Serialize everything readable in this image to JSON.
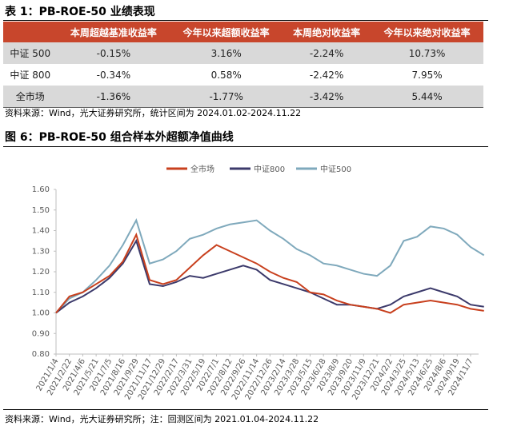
{
  "table_title": "表 1：PB-ROE-50 业绩表现",
  "table": {
    "header": [
      "",
      "本周超越基准收益率",
      "今年以来超额收益率",
      "本周绝对收益率",
      "今年以来绝对收益率"
    ],
    "rows": [
      [
        "中证 500",
        "-0.15%",
        "3.16%",
        "-2.24%",
        "10.73%"
      ],
      [
        "中证 800",
        "-0.34%",
        "0.58%",
        "-2.42%",
        "7.95%"
      ],
      [
        "全市场",
        "-1.36%",
        "-1.77%",
        "-3.42%",
        "5.44%"
      ]
    ]
  },
  "table_source": "资料来源：Wind，光大证券研究所，统计区间为 2024.01.02-2024.11.22",
  "figure_title": "图 6：PB-ROE-50 组合样本外超额净值曲线",
  "chart_data": {
    "type": "line",
    "categories": [
      "2021/1/4",
      "2021/2/22",
      "2021/4/6",
      "2021/5/21",
      "2021/7/5",
      "2021/8/16",
      "2021/9/29",
      "2021/11/17",
      "2021/12/29",
      "2022/2/17",
      "2022/3/31",
      "2022/5/19",
      "2022/7/1",
      "2022/8/12",
      "2022/9/26",
      "2022/11/14",
      "2022/12/26",
      "2023/2/14",
      "2023/3/28",
      "2023/5/15",
      "2023/6/28",
      "2023/8/9",
      "2023/9/20",
      "2023/11/9",
      "2023/12/21",
      "2024/2/2",
      "2024/3/25",
      "2024/5/13",
      "2024/6/25",
      "2024/8/6",
      "2024/9/19",
      "2024/11/7",
      null
    ],
    "series": [
      {
        "name": "全市场",
        "color": "#c8401e",
        "values": [
          1.0,
          1.08,
          1.1,
          1.14,
          1.18,
          1.25,
          1.38,
          1.16,
          1.14,
          1.16,
          1.22,
          1.28,
          1.33,
          1.3,
          1.27,
          1.24,
          1.2,
          1.17,
          1.15,
          1.1,
          1.09,
          1.06,
          1.04,
          1.03,
          1.02,
          1.0,
          1.04,
          1.05,
          1.06,
          1.05,
          1.04,
          1.02,
          1.01
        ]
      },
      {
        "name": "中证800",
        "color": "#3c3a6b",
        "values": [
          1.0,
          1.05,
          1.08,
          1.12,
          1.17,
          1.24,
          1.35,
          1.14,
          1.13,
          1.15,
          1.18,
          1.17,
          1.19,
          1.21,
          1.23,
          1.21,
          1.16,
          1.14,
          1.12,
          1.1,
          1.07,
          1.04,
          1.04,
          1.03,
          1.02,
          1.04,
          1.08,
          1.1,
          1.12,
          1.1,
          1.08,
          1.04,
          1.03
        ]
      },
      {
        "name": "中证500",
        "color": "#7fa9bc",
        "values": [
          1.0,
          1.07,
          1.1,
          1.16,
          1.23,
          1.33,
          1.45,
          1.24,
          1.26,
          1.3,
          1.36,
          1.38,
          1.41,
          1.43,
          1.44,
          1.45,
          1.4,
          1.36,
          1.31,
          1.28,
          1.24,
          1.23,
          1.21,
          1.19,
          1.18,
          1.23,
          1.35,
          1.37,
          1.42,
          1.41,
          1.38,
          1.32,
          1.28
        ]
      }
    ],
    "ylim": [
      0.8,
      1.6
    ],
    "yticks": [
      {
        "value": 0.8,
        "label": "0.80"
      },
      {
        "value": 0.9,
        "label": "0.90"
      },
      {
        "value": 1.0,
        "label": "1.00"
      },
      {
        "value": 1.1,
        "label": "1.10"
      },
      {
        "value": 1.2,
        "label": "1.20"
      },
      {
        "value": 1.3,
        "label": "1.30"
      },
      {
        "value": 1.4,
        "label": "1.40"
      },
      {
        "value": 1.5,
        "label": "1.50"
      },
      {
        "value": 1.6,
        "label": "1.60"
      }
    ]
  },
  "figure_source": "资料来源：Wind，光大证券研究所；注：回测区间为 2021.01.04-2024.11.22"
}
